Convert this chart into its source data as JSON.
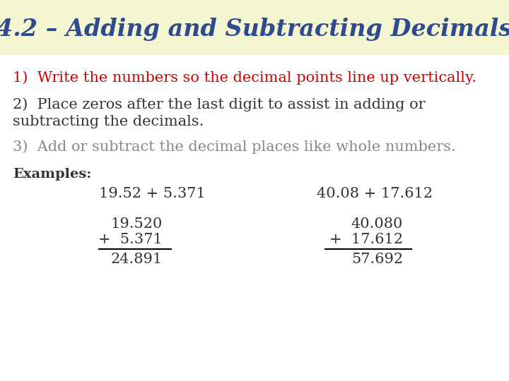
{
  "title": "4.2 – Adding and Subtracting Decimals",
  "title_color": "#2F4B8F",
  "title_bg_color": "#F5F5D0",
  "bg_color": "#FFFFFF",
  "line1": "1)  Write the numbers so the decimal points line up vertically.",
  "line1_color": "#CC0000",
  "line2a": "2)  Place zeros after the last digit to assist in adding or",
  "line2b": "subtracting the decimals.",
  "line2_color": "#333333",
  "line3": "3)  Add or subtract the decimal places like whole numbers.",
  "line3_color": "#888888",
  "examples_label": "Examples:",
  "ex1_header": "19.52 + 5.371",
  "ex1_row1": "19.520",
  "ex1_row2": "+  5.371",
  "ex1_result": "24.891",
  "ex2_header": "40.08 + 17.612",
  "ex2_row1": "40.080",
  "ex2_row2": "+  17.612",
  "ex2_result": "57.692",
  "text_color": "#333333",
  "title_fontsize": 24,
  "body_fontsize": 15,
  "examples_label_fontsize": 14,
  "example_fontsize": 15
}
